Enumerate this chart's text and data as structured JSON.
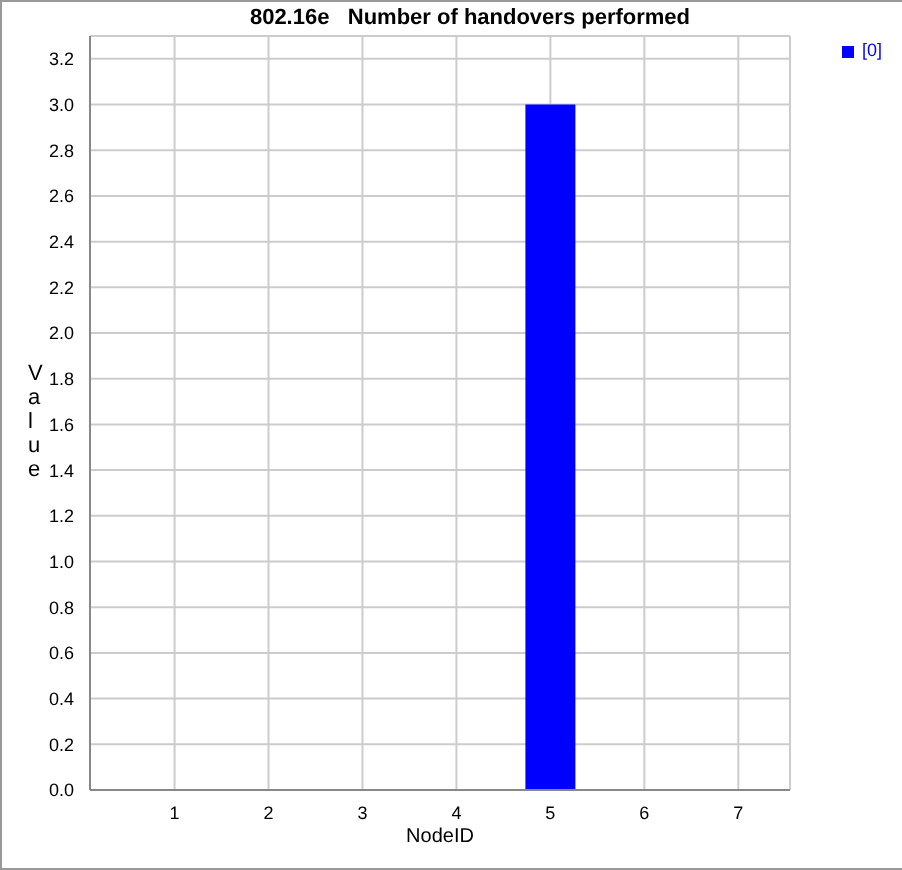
{
  "chart_data": {
    "type": "bar",
    "title": "802.16e   Number of handovers performed",
    "xlabel": "NodeID",
    "ylabel": "Value",
    "x": [
      1,
      2,
      3,
      4,
      5,
      6,
      7
    ],
    "series": [
      {
        "name": "[0]",
        "color": "#0000ff",
        "values": [
          0,
          0,
          0,
          0,
          3.0,
          0,
          0
        ]
      }
    ],
    "xlim": [
      0.1,
      7.55
    ],
    "xticks": [
      1,
      2,
      3,
      4,
      5,
      6,
      7
    ],
    "ylim": [
      0,
      3.3
    ],
    "yticks": [
      {
        "value": 0,
        "label": "0.0"
      },
      0.2,
      0.4,
      0.6,
      0.8,
      {
        "value": 1,
        "label": "1.0"
      },
      1.2,
      1.4,
      1.6,
      1.8,
      {
        "value": 2,
        "label": "2.0"
      },
      2.2,
      2.4,
      2.6,
      2.8,
      {
        "value": 3,
        "label": "3.0"
      },
      3.2
    ],
    "grid": true,
    "legend": "top right"
  }
}
